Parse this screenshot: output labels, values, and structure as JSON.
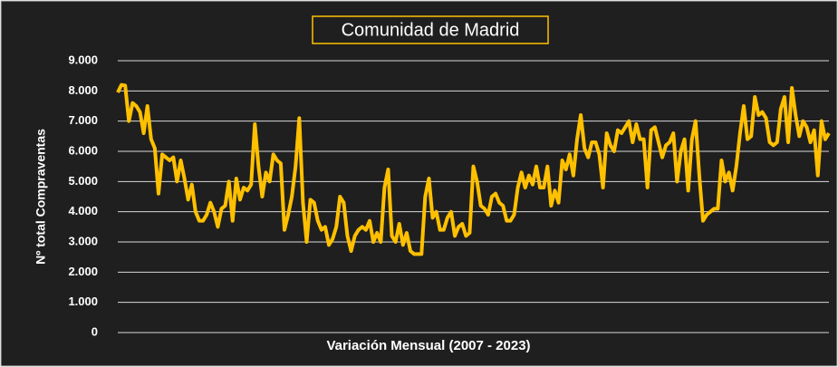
{
  "chart_data": {
    "type": "line",
    "title": "Comunidad de Madrid",
    "xlabel": "Variación Mensual (2007 - 2023)",
    "ylabel": "Nº total Compraventas",
    "color": "#FFC000",
    "grid": true,
    "ylim": [
      0,
      9000
    ],
    "yticks": [
      0,
      {
        "value": 1000,
        "label": "1.000"
      },
      {
        "value": 2000,
        "label": "2.000"
      },
      {
        "value": 3000,
        "label": "3.000"
      },
      {
        "value": 4000,
        "label": "4.000"
      },
      {
        "value": 5000,
        "label": "5.000"
      },
      {
        "value": 6000,
        "label": "6.000"
      },
      {
        "value": 7000,
        "label": "7.000"
      },
      {
        "value": 8000,
        "label": "8.000"
      },
      {
        "value": 9000,
        "label": "9.000"
      }
    ],
    "values": [
      7950,
      8200,
      8180,
      7000,
      7600,
      7500,
      7300,
      6600,
      7500,
      6400,
      6100,
      4600,
      5900,
      5800,
      5700,
      5800,
      5000,
      5700,
      5100,
      4400,
      4900,
      4000,
      3700,
      3700,
      3900,
      4300,
      4000,
      3500,
      4100,
      4200,
      5000,
      3700,
      5100,
      4400,
      4800,
      4700,
      4900,
      6900,
      5500,
      4500,
      5300,
      5000,
      5900,
      5700,
      5600,
      3400,
      3900,
      4500,
      5500,
      7100,
      4300,
      3000,
      4400,
      4300,
      3700,
      3400,
      3500,
      2900,
      3100,
      3500,
      4500,
      4300,
      3200,
      2700,
      3200,
      3400,
      3500,
      3400,
      3700,
      3000,
      3300,
      3000,
      4800,
      5400,
      3200,
      3000,
      3600,
      2900,
      3300,
      2700,
      2600,
      2600,
      2600,
      4500,
      5100,
      3800,
      4000,
      3400,
      3400,
      3800,
      4000,
      3200,
      3500,
      3600,
      3200,
      3300,
      5500,
      5000,
      4200,
      4100,
      3900,
      4500,
      4600,
      4300,
      4200,
      3700,
      3700,
      3900,
      4800,
      5300,
      4800,
      5200,
      4900,
      5500,
      4800,
      4800,
      5500,
      4200,
      4700,
      4300,
      5700,
      5400,
      5900,
      5200,
      6400,
      7200,
      6100,
      5800,
      6300,
      6300,
      5900,
      4800,
      6600,
      6200,
      6000,
      6700,
      6600,
      6800,
      7000,
      6300,
      6900,
      6400,
      6400,
      4800,
      6700,
      6800,
      6300,
      5800,
      6200,
      6300,
      6600,
      5000,
      6000,
      6400,
      4700,
      6400,
      7000,
      5200,
      3700,
      3900,
      4000,
      4100,
      4100,
      5700,
      5000,
      5300,
      4700,
      5500,
      6600,
      7500,
      6400,
      6500,
      7800,
      7200,
      7300,
      7100,
      6300,
      6200,
      6300,
      7400,
      7800,
      6300,
      8100,
      7200,
      6500,
      7000,
      6800,
      6300,
      6700,
      5200,
      7000,
      6400,
      6600
    ]
  }
}
